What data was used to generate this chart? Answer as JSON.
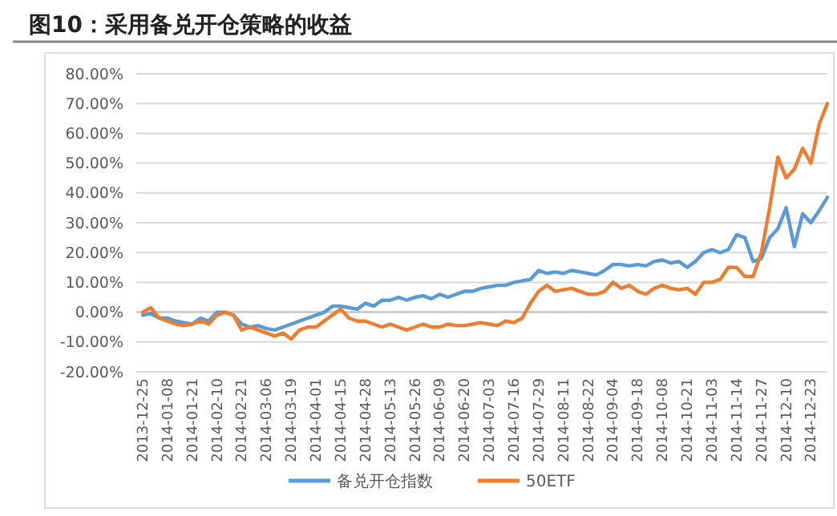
{
  "chart_data": {
    "type": "line",
    "title": "图10：采用备兑开仓策略的收益",
    "categories": [
      "2013-12-25",
      null,
      null,
      "2014-01-08",
      null,
      null,
      "2014-01-21",
      null,
      null,
      "2014-02-10",
      null,
      null,
      "2014-02-21",
      null,
      null,
      "2014-03-06",
      null,
      null,
      "2014-03-19",
      null,
      null,
      "2014-04-01",
      null,
      null,
      "2014-04-15",
      null,
      null,
      "2014-04-28",
      null,
      null,
      "2014-05-13",
      null,
      null,
      "2014-05-26",
      null,
      null,
      "2014-06-09",
      null,
      null,
      "2014-06-20",
      null,
      null,
      "2014-07-03",
      null,
      null,
      "2014-07-16",
      null,
      null,
      "2014-07-29",
      null,
      null,
      "2014-08-11",
      null,
      null,
      "2014-08-22",
      null,
      null,
      "2014-09-04",
      null,
      null,
      "2014-09-18",
      null,
      null,
      "2014-10-08",
      null,
      null,
      "2014-10-21",
      null,
      null,
      "2014-11-03",
      null,
      null,
      "2014-11-14",
      null,
      null,
      "2014-11-27",
      null,
      null,
      "2014-12-10",
      null,
      null,
      "2014-12-23",
      null,
      null
    ],
    "series": [
      {
        "name": "备兑开仓指数",
        "color": "#5b9bd5",
        "values": [
          -1,
          -0.5,
          -2,
          -2,
          -3,
          -3.5,
          -4,
          -2,
          -3,
          0,
          0,
          -1,
          -4,
          -5,
          -4.5,
          -5.5,
          -6,
          -5,
          -4,
          -3,
          -2,
          -1,
          0,
          2,
          2,
          1.5,
          1,
          3,
          2,
          4,
          4,
          5,
          4,
          5,
          5.5,
          4.5,
          6,
          5,
          6,
          7,
          7,
          8,
          8.5,
          9,
          9,
          10,
          10.5,
          11,
          14,
          13,
          13.5,
          13,
          14,
          13.5,
          13,
          12.5,
          14,
          16,
          16,
          15.5,
          16,
          15.5,
          17,
          17.5,
          16.5,
          17,
          15,
          17,
          20,
          21,
          20,
          21,
          26,
          25,
          17,
          18,
          25,
          28,
          35,
          22,
          33,
          30,
          34,
          38.5
        ]
      },
      {
        "name": "50ETF",
        "color": "#ed7d31",
        "values": [
          0,
          1.5,
          -2,
          -3,
          -4,
          -4.5,
          -4,
          -3,
          -4,
          -1,
          0,
          -1,
          -6,
          -5,
          -6,
          -7,
          -8,
          -7,
          -9,
          -6,
          -5,
          -5,
          -3,
          -1,
          1,
          -2,
          -3,
          -3,
          -4,
          -5,
          -4,
          -5,
          -6,
          -5,
          -4,
          -5,
          -5,
          -4,
          -4.5,
          -4.5,
          -4,
          -3.5,
          -4,
          -4.5,
          -3,
          -3.5,
          -2,
          3,
          7,
          9,
          7,
          7.5,
          8,
          7,
          6,
          6,
          7,
          10,
          8,
          9,
          7,
          6,
          8,
          9,
          8,
          7.5,
          8,
          6,
          10,
          10,
          11,
          15,
          15,
          12,
          12,
          20,
          35,
          52,
          45,
          48,
          55,
          50,
          63,
          70
        ]
      }
    ],
    "ylim": [
      -20,
      80
    ],
    "yticks": [
      {
        "value": -20,
        "label": "-20.00%"
      },
      {
        "value": -10,
        "label": "-10.00%"
      },
      {
        "value": 0,
        "label": "0.00%"
      },
      {
        "value": 10,
        "label": "10.00%"
      },
      {
        "value": 20,
        "label": "20.00%"
      },
      {
        "value": 30,
        "label": "30.00%"
      },
      {
        "value": 40,
        "label": "40.00%"
      },
      {
        "value": 50,
        "label": "50.00%"
      },
      {
        "value": 60,
        "label": "60.00%"
      },
      {
        "value": 70,
        "label": "70.00%"
      },
      {
        "value": 80,
        "label": "80.00%"
      }
    ],
    "grid": "y",
    "legend": "bottom",
    "marker": "none",
    "line_style": "solid"
  }
}
